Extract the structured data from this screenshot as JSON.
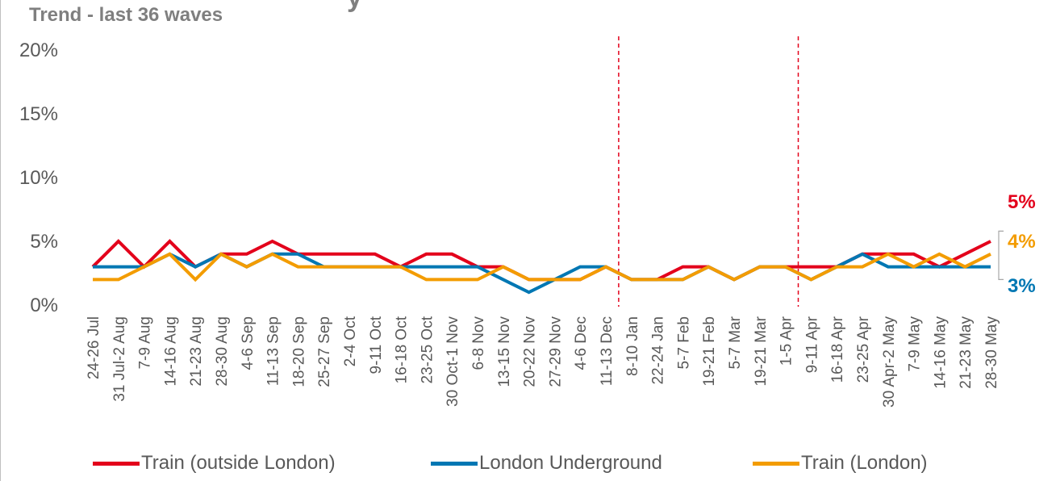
{
  "header": {
    "title_partial": "y",
    "subtitle": "Trend - last 36 waves"
  },
  "colors": {
    "train_outside_london": "#e3001b",
    "london_underground": "#0077b3",
    "train_london": "#f39c00",
    "marker_line": "#e3001b"
  },
  "chart_data": {
    "type": "line",
    "categories": [
      "24-26 Jul",
      "31 Jul-2 Aug",
      "7-9 Aug",
      "14-16 Aug",
      "21-23 Aug",
      "28-30 Aug",
      "4-6 Sep",
      "11-13 Sep",
      "18-20 Sep",
      "25-27 Sep",
      "2-4 Oct",
      "9-11 Oct",
      "16-18 Oct",
      "23-25 Oct",
      "30 Oct-1 Nov",
      "6-8 Nov",
      "13-15 Nov",
      "20-22 Nov",
      "27-29 Nov",
      "4-6 Dec",
      "11-13 Dec",
      "8-10 Jan",
      "22-24 Jan",
      "5-7 Feb",
      "19-21 Feb",
      "5-7 Mar",
      "19-21 Mar",
      "1-5 Apr",
      "9-11 Apr",
      "16-18 Apr",
      "23-25 Apr",
      "30 Apr-2 May",
      "7-9 May",
      "14-16 May",
      "21-23 May",
      "28-30 May"
    ],
    "series": [
      {
        "name": "Train (outside London)",
        "color_key": "train_outside_london",
        "values": [
          3,
          5,
          3,
          5,
          3,
          4,
          4,
          5,
          4,
          4,
          4,
          4,
          3,
          4,
          4,
          3,
          3,
          2,
          2,
          2,
          3,
          2,
          2,
          3,
          3,
          2,
          3,
          3,
          3,
          3,
          4,
          4,
          4,
          3,
          4,
          5
        ]
      },
      {
        "name": "London Underground",
        "color_key": "london_underground",
        "values": [
          3,
          3,
          3,
          4,
          3,
          4,
          3,
          4,
          4,
          3,
          3,
          3,
          3,
          3,
          3,
          3,
          2,
          1,
          2,
          3,
          3,
          2,
          2,
          2,
          3,
          2,
          3,
          3,
          2,
          3,
          4,
          3,
          3,
          3,
          3,
          3
        ]
      },
      {
        "name": "Train (London)",
        "color_key": "train_london",
        "values": [
          2,
          2,
          3,
          4,
          2,
          4,
          3,
          4,
          3,
          3,
          3,
          3,
          3,
          2,
          2,
          2,
          3,
          2,
          2,
          2,
          3,
          2,
          2,
          2,
          3,
          2,
          3,
          3,
          2,
          3,
          3,
          4,
          3,
          4,
          3,
          4
        ]
      }
    ],
    "yticks": [
      "0%",
      "5%",
      "10%",
      "15%",
      "20%"
    ],
    "ylim": [
      0,
      20
    ],
    "reference_lines_after": [
      "11-13 Dec",
      "1-5 Apr"
    ],
    "end_labels": [
      {
        "text": "5%",
        "color_key": "train_outside_london",
        "value": 5
      },
      {
        "text": "4%",
        "color_key": "train_london",
        "value": 4
      },
      {
        "text": "3%",
        "color_key": "london_underground",
        "value": 3
      }
    ],
    "legend_position": "bottom",
    "grid": false
  },
  "legend": {
    "items": [
      {
        "label": "Train (outside London)"
      },
      {
        "label": "London Underground"
      },
      {
        "label": "Train (London)"
      }
    ]
  }
}
